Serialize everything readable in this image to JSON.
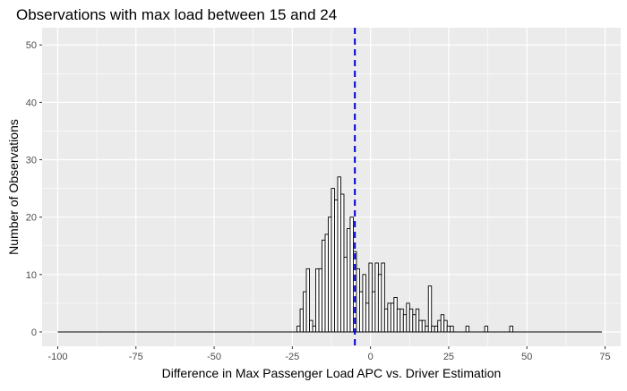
{
  "chart_data": {
    "type": "bar",
    "title": "Observations with max load between 15 and 24",
    "xlabel": "Difference in Max Passenger Load APC vs. Driver Estimation",
    "ylabel": "Number of Observations",
    "xlim": [
      -105,
      80
    ],
    "ylim": [
      -2.5,
      53
    ],
    "x_ticks": [
      -100,
      -75,
      -50,
      -25,
      0,
      25,
      50,
      75
    ],
    "x_tick_labels": [
      "-100",
      "-75",
      "-50",
      "-25",
      "0",
      "25",
      "50",
      "75"
    ],
    "y_ticks": [
      0,
      10,
      20,
      30,
      40,
      50
    ],
    "y_tick_labels": [
      "0",
      "10",
      "20",
      "30",
      "40",
      "50"
    ],
    "grid": true,
    "bin_width": 1,
    "bin_range": [
      -100,
      74
    ],
    "mean_line": {
      "x": -5,
      "color": "#0000cc",
      "style": "dashed"
    },
    "bars": [
      {
        "x": -23,
        "y": 1
      },
      {
        "x": -22,
        "y": 4
      },
      {
        "x": -21,
        "y": 7
      },
      {
        "x": -20,
        "y": 11
      },
      {
        "x": -19,
        "y": 2
      },
      {
        "x": -18,
        "y": 1
      },
      {
        "x": -17,
        "y": 11
      },
      {
        "x": -16,
        "y": 11
      },
      {
        "x": -15,
        "y": 16
      },
      {
        "x": -14,
        "y": 17
      },
      {
        "x": -13,
        "y": 20
      },
      {
        "x": -12,
        "y": 25
      },
      {
        "x": -11,
        "y": 23
      },
      {
        "x": -10,
        "y": 27
      },
      {
        "x": -9,
        "y": 24
      },
      {
        "x": -8,
        "y": 13
      },
      {
        "x": -7,
        "y": 18
      },
      {
        "x": -6,
        "y": 20
      },
      {
        "x": -5,
        "y": 14
      },
      {
        "x": -4,
        "y": 11
      },
      {
        "x": -3,
        "y": 7
      },
      {
        "x": -2,
        "y": 10
      },
      {
        "x": -1,
        "y": 5
      },
      {
        "x": 0,
        "y": 12
      },
      {
        "x": 1,
        "y": 7
      },
      {
        "x": 2,
        "y": 12
      },
      {
        "x": 3,
        "y": 10
      },
      {
        "x": 4,
        "y": 12
      },
      {
        "x": 5,
        "y": 4
      },
      {
        "x": 6,
        "y": 5
      },
      {
        "x": 7,
        "y": 5
      },
      {
        "x": 8,
        "y": 6
      },
      {
        "x": 9,
        "y": 4
      },
      {
        "x": 10,
        "y": 4
      },
      {
        "x": 11,
        "y": 3
      },
      {
        "x": 12,
        "y": 5
      },
      {
        "x": 13,
        "y": 4
      },
      {
        "x": 14,
        "y": 3
      },
      {
        "x": 15,
        "y": 4
      },
      {
        "x": 16,
        "y": 2
      },
      {
        "x": 17,
        "y": 2
      },
      {
        "x": 18,
        "y": 1
      },
      {
        "x": 19,
        "y": 8
      },
      {
        "x": 20,
        "y": 1
      },
      {
        "x": 21,
        "y": 1
      },
      {
        "x": 22,
        "y": 2
      },
      {
        "x": 23,
        "y": 3
      },
      {
        "x": 24,
        "y": 2
      },
      {
        "x": 25,
        "y": 1
      },
      {
        "x": 26,
        "y": 1
      },
      {
        "x": 31,
        "y": 1
      },
      {
        "x": 37,
        "y": 1
      },
      {
        "x": 45,
        "y": 1
      }
    ],
    "colors": {
      "panel": "#ebebeb",
      "grid": "#ffffff",
      "bar_fill": "#ffffff",
      "bar_outline": "#000000",
      "text": "#000000",
      "tick_text": "#4d4d4d"
    }
  }
}
